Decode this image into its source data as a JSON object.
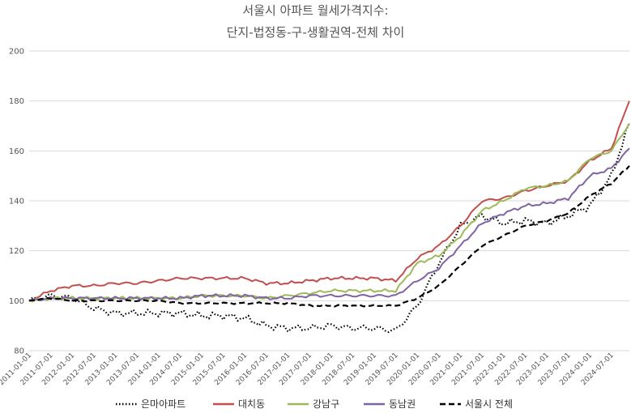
{
  "chart_data": {
    "type": "line",
    "title": "서울시 아파트 월세가격지수:",
    "subtitle": "단지-법정동-구-생활권역-전체 차이",
    "xlabel": "",
    "ylabel": "",
    "ylim": [
      80,
      200
    ],
    "yticks": [
      80,
      100,
      120,
      140,
      160,
      180,
      200
    ],
    "grid": true,
    "legend_position": "bottom",
    "x_tick_labels": [
      "2011-01-01",
      "2011-07-01",
      "2012-01-01",
      "2012-07-01",
      "2013-01-01",
      "2013-07-01",
      "2014-01-01",
      "2014-07-01",
      "2015-01-01",
      "2015-07-01",
      "2016-01-01",
      "2016-07-01",
      "2017-01-01",
      "2017-07-01",
      "2018-01-01",
      "2018-07-01",
      "2019-01-01",
      "2019-07-01",
      "2020-01-01",
      "2020-07-01",
      "2021-01-01",
      "2021-07-01",
      "2022-01-01",
      "2022-07-01",
      "2023-01-01",
      "2023-07-01",
      "2024-01-01",
      "2024-07-01"
    ],
    "x_range": [
      "2011-01",
      "2024-12"
    ],
    "x": [
      "2011-01",
      "2011-07",
      "2012-01",
      "2012-07",
      "2013-01",
      "2013-07",
      "2014-01",
      "2014-07",
      "2015-01",
      "2015-07",
      "2016-01",
      "2016-07",
      "2017-01",
      "2017-07",
      "2018-01",
      "2018-07",
      "2019-01",
      "2019-07",
      "2020-01",
      "2020-07",
      "2021-01",
      "2021-07",
      "2022-01",
      "2022-07",
      "2023-01",
      "2023-07",
      "2024-01",
      "2024-07",
      "2024-12"
    ],
    "series": [
      {
        "name": "은마아파트",
        "color": "#000000",
        "dash": "dotted",
        "values": [
          100,
          102,
          101,
          97,
          95,
          95,
          95,
          95,
          94,
          94,
          93,
          90,
          89,
          89,
          90,
          89,
          89,
          88,
          98,
          115,
          130,
          134,
          131,
          132,
          131,
          134,
          138,
          150,
          171
        ]
      },
      {
        "name": "대치동",
        "color": "#c0504d",
        "dash": "solid",
        "values": [
          100,
          104,
          106,
          106,
          107,
          107,
          108,
          109,
          109,
          109,
          109,
          107,
          107,
          108,
          109,
          109,
          109,
          108,
          117,
          122,
          130,
          140,
          141,
          144,
          146,
          148,
          156,
          161,
          180
        ]
      },
      {
        "name": "강남구",
        "color": "#9bbb59",
        "dash": "solid",
        "values": [
          100,
          101,
          101,
          101,
          101,
          101,
          101,
          101,
          102,
          102,
          102,
          101,
          102,
          103,
          104,
          104,
          104,
          104,
          115,
          118,
          126,
          136,
          140,
          145,
          146,
          148,
          157,
          160,
          171
        ]
      },
      {
        "name": "동남권",
        "color": "#8064a2",
        "dash": "solid",
        "values": [
          100,
          101,
          101,
          101,
          101,
          101,
          101,
          101,
          102,
          102,
          102,
          101,
          101,
          102,
          102,
          102,
          102,
          102,
          108,
          113,
          122,
          131,
          135,
          138,
          139,
          141,
          150,
          153,
          161
        ]
      },
      {
        "name": "서울시 전체",
        "color": "#000000",
        "dash": "dashed",
        "values": [
          100,
          101,
          100,
          100,
          100,
          100,
          100,
          99,
          99,
          99,
          99,
          99,
          99,
          98,
          98,
          98,
          98,
          98,
          101,
          106,
          114,
          122,
          126,
          130,
          132,
          135,
          142,
          147,
          154
        ]
      }
    ]
  }
}
